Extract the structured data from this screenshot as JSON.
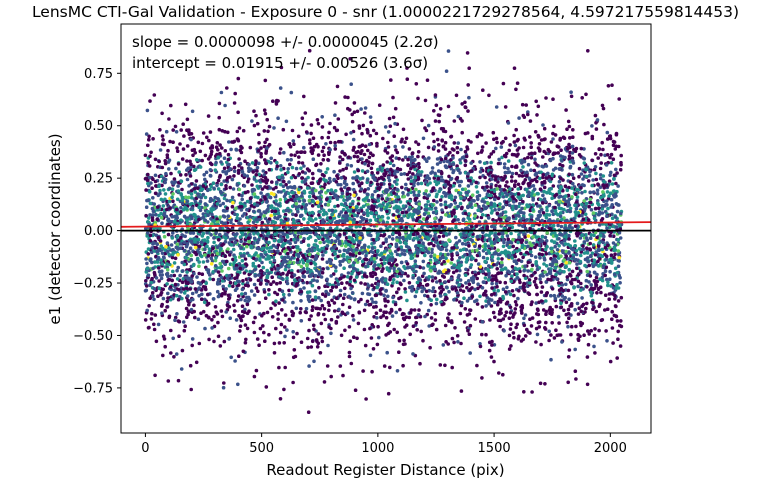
{
  "chart_data": {
    "type": "scatter",
    "title": "LensMC CTI-Gal Validation - Exposure 0 - snr (1.0000221729278564, 4.597217559814453)",
    "xlabel": "Readout Register Distance (pix)",
    "ylabel": "e1 (detector coordinates)",
    "xlim": [
      -105,
      2175
    ],
    "ylim": [
      -0.965,
      0.985
    ],
    "xticks": [
      0,
      500,
      1000,
      1500,
      2000
    ],
    "xtick_labels": [
      "0",
      "500",
      "1000",
      "1500",
      "2000"
    ],
    "yticks": [
      -0.75,
      -0.5,
      -0.25,
      0.0,
      0.25,
      0.5,
      0.75
    ],
    "ytick_labels": [
      "−0.75",
      "−0.50",
      "−0.25",
      "0.00",
      "0.25",
      "0.50",
      "0.75"
    ],
    "grid": false,
    "annotations": [
      "slope = 0.0000098 +/- 0.0000045 (2.2σ)",
      "intercept = 0.01915 +/- 0.00526 (3.6σ)"
    ],
    "lines": [
      {
        "kind": "fit",
        "color": "#e41a1c",
        "slope": 9.8e-06,
        "intercept": 0.01915
      },
      {
        "kind": "zero",
        "color": "#000000",
        "y": 0.0
      }
    ],
    "scatter": {
      "x_range": [
        0,
        2048
      ],
      "y_center": 0.0,
      "approx_points": 7000,
      "colormap": "viridis",
      "colors": [
        "#440154",
        "#3b528b",
        "#21918c",
        "#5ec962",
        "#fde725"
      ]
    }
  }
}
